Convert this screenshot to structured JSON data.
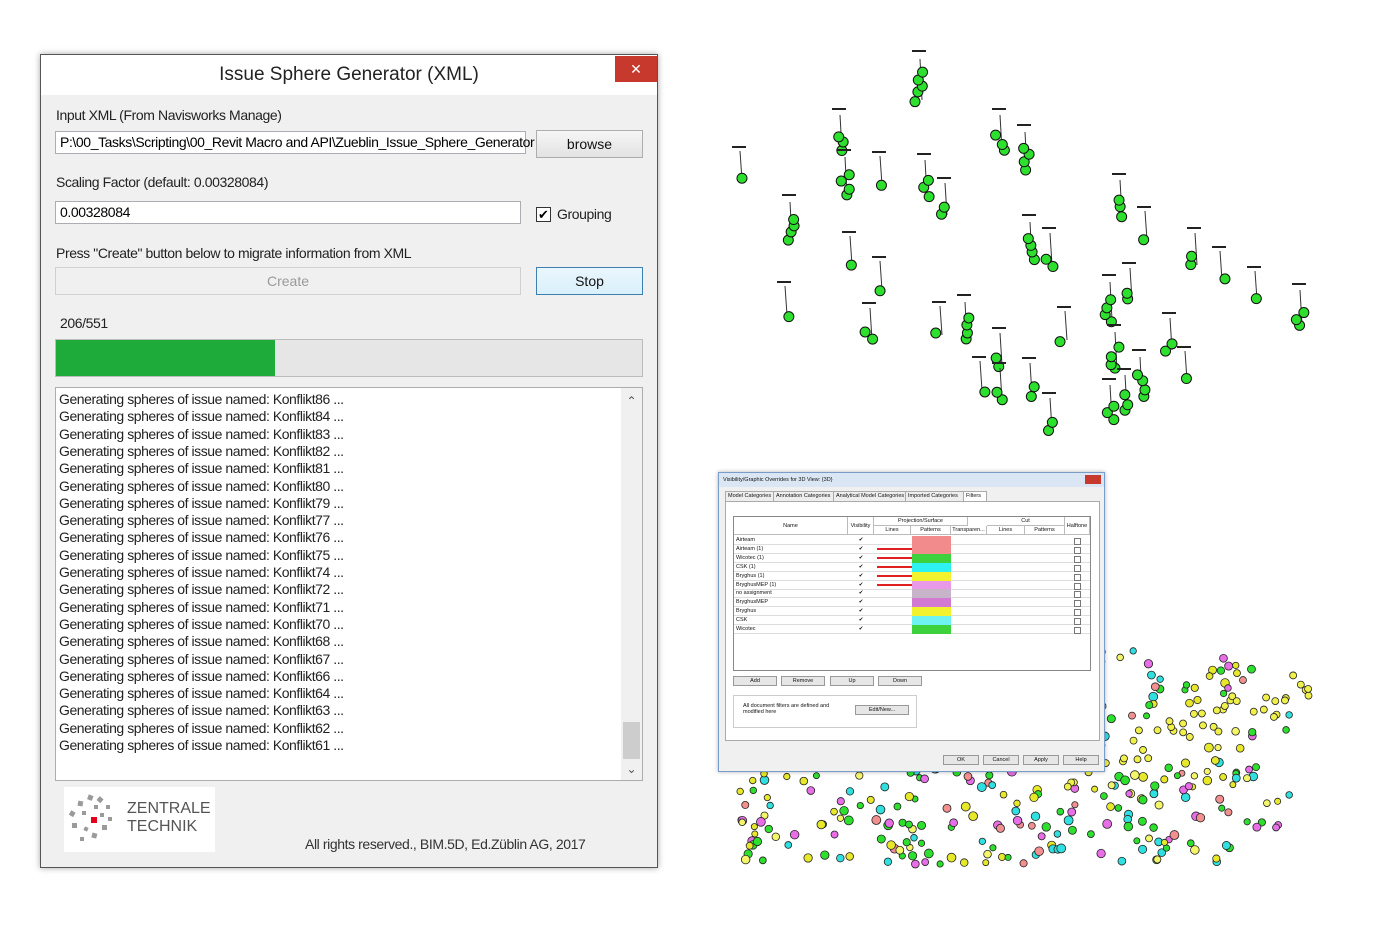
{
  "dialog": {
    "title": "Issue Sphere Generator (XML)",
    "close": "✕",
    "input_label": "Input XML (From Navisworks Manage)",
    "input_path": "P:\\00_Tasks\\Scripting\\00_Revit Macro and API\\Zueblin_Issue_Sphere_Generator",
    "browse": "browse",
    "scaling_label": "Scaling Factor (default: 0.00328084)",
    "scaling_value": "0.00328084",
    "grouping": "Grouping",
    "press_label": "Press \"Create\" button below to migrate information from XML",
    "create": "Create",
    "stop": "Stop",
    "progress": {
      "label": "206/551",
      "value": 206,
      "max": 551
    },
    "log": [
      "Generating spheres of issue named: Konflikt86 ...",
      "Generating spheres of issue named: Konflikt84 ...",
      "Generating spheres of issue named: Konflikt83 ...",
      "Generating spheres of issue named: Konflikt82 ...",
      "Generating spheres of issue named: Konflikt81 ...",
      "Generating spheres of issue named: Konflikt80 ...",
      "Generating spheres of issue named: Konflikt79 ...",
      "Generating spheres of issue named: Konflikt77 ...",
      "Generating spheres of issue named: Konflikt76 ...",
      "Generating spheres of issue named: Konflikt75 ...",
      "Generating spheres of issue named: Konflikt74 ...",
      "Generating spheres of issue named: Konflikt72 ...",
      "Generating spheres of issue named: Konflikt71 ...",
      "Generating spheres of issue named: Konflikt70 ...",
      "Generating spheres of issue named: Konflikt68 ...",
      "Generating spheres of issue named: Konflikt67 ...",
      "Generating spheres of issue named: Konflikt66 ...",
      "Generating spheres of issue named: Konflikt64 ...",
      "Generating spheres of issue named: Konflikt63 ...",
      "Generating spheres of issue named: Konflikt62 ...",
      "Generating spheres of issue named: Konflikt61 ..."
    ],
    "logo": [
      "ZENTRALE",
      "TECHNIK"
    ],
    "footer": "All rights reserved., BIM.5D, Ed.Züblin AG, 2017"
  },
  "revit": {
    "title": "Visibility/Graphic Overrides for 3D View: {3D}",
    "tabs": [
      "Model Categories",
      "Annotation Categories",
      "Analytical Model Categories",
      "Imported Categories",
      "Filters"
    ],
    "headers": {
      "name": "Name",
      "visibility": "Visibility",
      "projection": "Projection/Surface",
      "lines": "Lines",
      "patterns": "Patterns",
      "transparency": "Transparen...",
      "cut": "Cut",
      "cut_lines": "Lines",
      "cut_patterns": "Patterns",
      "halftone": "Halftone"
    },
    "rows": [
      {
        "name": "Airteam",
        "line": null,
        "pattern": "#f28c8c"
      },
      {
        "name": "Airteam (1)",
        "line": "#e02020",
        "pattern": "#f28c8c"
      },
      {
        "name": "Wicotec (1)",
        "line": "#e02020",
        "pattern": "#3ed13e"
      },
      {
        "name": "CSK (1)",
        "line": "#e02020",
        "pattern": "#2ef2f2"
      },
      {
        "name": "Bryghus (1)",
        "line": "#e02020",
        "pattern": "#f2f22e"
      },
      {
        "name": "BryghusMEP (1)",
        "line": "#e02020",
        "pattern": "#e89ae8"
      },
      {
        "name": "no assignment",
        "line": null,
        "pattern": "#c8b4c8"
      },
      {
        "name": "BryghusMEP",
        "line": null,
        "pattern": "#d27ad2"
      },
      {
        "name": "Bryghus",
        "line": null,
        "pattern": "#f2f22e"
      },
      {
        "name": "CSK",
        "line": null,
        "pattern": "#6ef2f2"
      },
      {
        "name": "Wicotec",
        "line": null,
        "pattern": "#3ed13e"
      }
    ],
    "check": "✔",
    "buttons": [
      "Add",
      "Remove",
      "Up",
      "Down"
    ],
    "note": "All document filters are defined and modified here",
    "edit": "Edit/New...",
    "footer_buttons": [
      "OK",
      "Cancel",
      "Apply",
      "Help"
    ]
  }
}
